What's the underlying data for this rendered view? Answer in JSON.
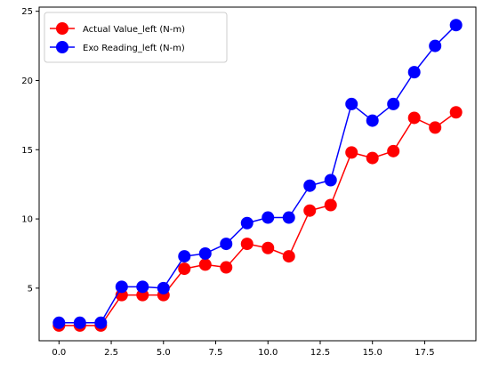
{
  "chart_data": {
    "type": "line",
    "title": "",
    "xlabel": "",
    "ylabel": "",
    "xlim": [
      -0.95,
      19.95
    ],
    "ylim": [
      1.2,
      25.3
    ],
    "grid": false,
    "legend_position": "top-left",
    "x": [
      0,
      1,
      2,
      3,
      4,
      5,
      6,
      7,
      8,
      9,
      10,
      11,
      12,
      13,
      14,
      15,
      16,
      17,
      18,
      19
    ],
    "x_ticks": [
      0.0,
      2.5,
      5.0,
      7.5,
      10.0,
      12.5,
      15.0,
      17.5
    ],
    "x_tick_labels": [
      "0.0",
      "2.5",
      "5.0",
      "7.5",
      "10.0",
      "12.5",
      "15.0",
      "17.5"
    ],
    "y_ticks": [
      5,
      10,
      15,
      20,
      25
    ],
    "y_tick_labels": [
      "5",
      "10",
      "15",
      "20",
      "25"
    ],
    "series": [
      {
        "name": "Actual Value_left (N-m)",
        "color": "#ff0000",
        "marker": "circle",
        "values": [
          2.3,
          2.3,
          2.3,
          4.5,
          4.5,
          4.5,
          6.4,
          6.7,
          6.5,
          8.2,
          7.9,
          7.3,
          10.6,
          11.0,
          14.8,
          14.4,
          14.9,
          17.3,
          16.6,
          17.7
        ]
      },
      {
        "name": "Exo Reading_left (N-m)",
        "color": "#0000ff",
        "marker": "circle",
        "values": [
          2.5,
          2.5,
          2.5,
          5.1,
          5.1,
          5.0,
          7.3,
          7.5,
          8.2,
          9.7,
          10.1,
          10.1,
          12.4,
          12.8,
          18.3,
          17.1,
          18.3,
          20.6,
          22.5,
          24.0
        ]
      }
    ]
  }
}
